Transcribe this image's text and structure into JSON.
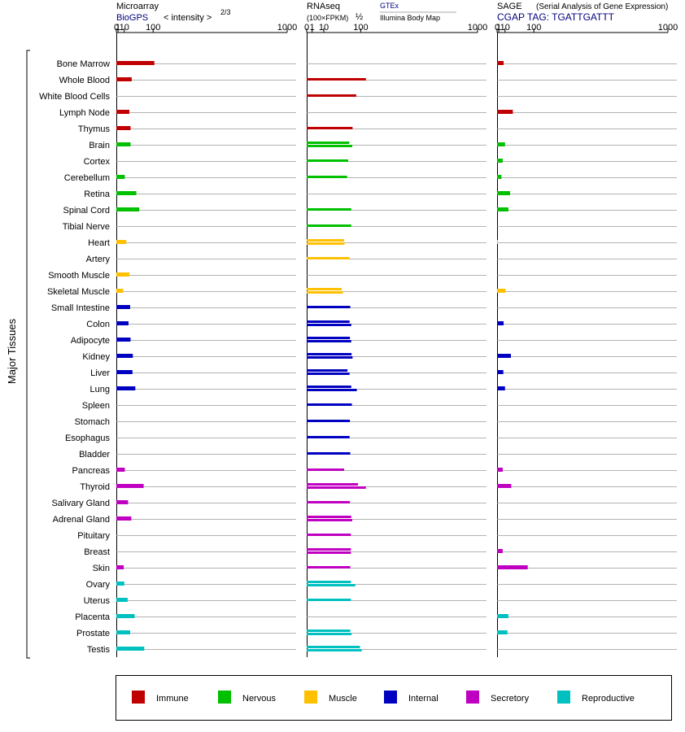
{
  "colors": {
    "Immune": "#c00000",
    "Nervous": "#00c000",
    "Muscle": "#ffc000",
    "Internal": "#0000c0",
    "Secretory": "#c000c0",
    "Reproductive": "#00c0c0"
  },
  "y_axis_label": "Major Tissues",
  "headers": {
    "microarray": {
      "title": "Microarray",
      "source": "BioGPS",
      "unit": "< intensity >",
      "exponent": "2/3"
    },
    "rnaseq": {
      "title": "RNAseq",
      "unit": "(100×FPKM)",
      "exponent": "½",
      "source": "GTEx",
      "subsource": "Illumina Body Map"
    },
    "sage": {
      "title": "SAGE",
      "subtitle": "(Serial Analysis of Gene Expression)",
      "tag": "CGAP TAG: TGATTGATTT"
    }
  },
  "chart_data": [
    {
      "type": "bar",
      "panel": "Microarray",
      "scale": "power 2/3",
      "xlim": [
        0,
        1000
      ],
      "ticks": [
        "0",
        "1",
        "10",
        "100",
        "1000"
      ],
      "tick_values": [
        0,
        1,
        10,
        100,
        1000
      ],
      "categories": [
        "Bone Marrow",
        "Whole Blood",
        "White Blood Cells",
        "Lymph Node",
        "Thymus",
        "Brain",
        "Cortex",
        "Cerebellum",
        "Retina",
        "Spinal Cord",
        "Tibial Nerve",
        "Heart",
        "Artery",
        "Smooth Muscle",
        "Skeletal Muscle",
        "Small Intestine",
        "Colon",
        "Adipocyte",
        "Kidney",
        "Liver",
        "Lung",
        "Spleen",
        "Stomach",
        "Esophagus",
        "Bladder",
        "Pancreas",
        "Thyroid",
        "Salivary Gland",
        "Adrenal Gland",
        "Pituitary",
        "Breast",
        "Skin",
        "Ovary",
        "Uterus",
        "Placenta",
        "Prostate",
        "Testis"
      ],
      "groups": [
        "Immune",
        "Immune",
        "Immune",
        "Immune",
        "Immune",
        "Nervous",
        "Nervous",
        "Nervous",
        "Nervous",
        "Nervous",
        "Nervous",
        "Muscle",
        "Muscle",
        "Muscle",
        "Muscle",
        "Internal",
        "Internal",
        "Internal",
        "Internal",
        "Internal",
        "Internal",
        "Internal",
        "Internal",
        "Internal",
        "Internal",
        "Secretory",
        "Secretory",
        "Secretory",
        "Secretory",
        "Secretory",
        "Secretory",
        "Secretory",
        "Reproductive",
        "Reproductive",
        "Reproductive",
        "Reproductive",
        "Reproductive"
      ],
      "values": [
        [
          105
        ],
        [
          27
        ],
        [],
        [
          21
        ],
        [
          24
        ],
        [
          24
        ],
        [],
        [
          11
        ],
        [
          40
        ],
        [
          49
        ],
        [],
        [
          14
        ],
        [],
        [
          21
        ],
        [
          8
        ],
        [
          23
        ],
        [
          19
        ],
        [
          24
        ],
        [
          30
        ],
        [
          29
        ],
        [
          37
        ],
        [],
        [],
        [],
        [],
        [
          11
        ],
        [
          64
        ],
        [
          18
        ],
        [
          26
        ],
        [],
        [],
        [
          9
        ],
        [
          10
        ],
        [
          17
        ],
        [
          35
        ],
        [
          23
        ],
        [
          66
        ]
      ]
    },
    {
      "type": "bar",
      "panel": "RNAseq",
      "scale": "power 1/2",
      "xlim": [
        0,
        1000
      ],
      "ticks": [
        "0",
        "1",
        "10",
        "100",
        "1000"
      ],
      "tick_values": [
        0,
        1,
        10,
        100,
        1000
      ],
      "categories": [
        "Bone Marrow",
        "Whole Blood",
        "White Blood Cells",
        "Lymph Node",
        "Thymus",
        "Brain",
        "Cortex",
        "Cerebellum",
        "Retina",
        "Spinal Cord",
        "Tibial Nerve",
        "Heart",
        "Artery",
        "Smooth Muscle",
        "Skeletal Muscle",
        "Small Intestine",
        "Colon",
        "Adipocyte",
        "Kidney",
        "Liver",
        "Lung",
        "Spleen",
        "Stomach",
        "Esophagus",
        "Bladder",
        "Pancreas",
        "Thyroid",
        "Salivary Gland",
        "Adrenal Gland",
        "Pituitary",
        "Breast",
        "Skin",
        "Ovary",
        "Uterus",
        "Placenta",
        "Prostate",
        "Testis"
      ],
      "groups": [
        "Immune",
        "Immune",
        "Immune",
        "Immune",
        "Immune",
        "Nervous",
        "Nervous",
        "Nervous",
        "Nervous",
        "Nervous",
        "Nervous",
        "Muscle",
        "Muscle",
        "Muscle",
        "Muscle",
        "Internal",
        "Internal",
        "Internal",
        "Internal",
        "Internal",
        "Internal",
        "Internal",
        "Internal",
        "Internal",
        "Internal",
        "Secretory",
        "Secretory",
        "Secretory",
        "Secretory",
        "Secretory",
        "Secretory",
        "Secretory",
        "Reproductive",
        "Reproductive",
        "Reproductive",
        "Reproductive",
        "Reproductive"
      ],
      "values": [
        [],
        [
          120
        ],
        [
          84
        ],
        [],
        [
          72
        ],
        [
          62,
          71
        ],
        [
          59
        ],
        [
          56
        ],
        [],
        [
          68
        ],
        [
          68
        ],
        [
          48,
          49
        ],
        [
          63
        ],
        [],
        [
          42,
          45
        ],
        [
          65
        ],
        [
          63,
          68
        ],
        [
          64,
          68
        ],
        [
          69,
          72
        ],
        [
          57,
          63
        ],
        [
          68,
          86
        ],
        [
          70
        ],
        [
          64
        ],
        [
          63
        ],
        [
          65
        ],
        [
          48
        ],
        [
          90,
          120
        ],
        [
          64
        ],
        [
          68,
          71
        ],
        [
          67
        ],
        [
          67,
          67
        ],
        [
          65
        ],
        [
          67,
          81
        ],
        [
          67
        ],
        [],
        [
          65,
          69
        ],
        [
          97,
          104
        ]
      ]
    },
    {
      "type": "bar",
      "panel": "SAGE",
      "scale": "power 2/3",
      "xlim": [
        0,
        1000
      ],
      "ticks": [
        "0",
        "1",
        "10",
        "100",
        "1000"
      ],
      "tick_values": [
        0,
        1,
        10,
        100,
        1000
      ],
      "categories": [
        "Bone Marrow",
        "Whole Blood",
        "White Blood Cells",
        "Lymph Node",
        "Thymus",
        "Brain",
        "Cortex",
        "Cerebellum",
        "Retina",
        "Spinal Cord",
        "Tibial Nerve",
        "Heart",
        "Artery",
        "Smooth Muscle",
        "Skeletal Muscle",
        "Small Intestine",
        "Colon",
        "Adipocyte",
        "Kidney",
        "Liver",
        "Lung",
        "Spleen",
        "Stomach",
        "Esophagus",
        "Bladder",
        "Pancreas",
        "Thyroid",
        "Salivary Gland",
        "Adrenal Gland",
        "Pituitary",
        "Breast",
        "Skin",
        "Ovary",
        "Uterus",
        "Placenta",
        "Prostate",
        "Testis"
      ],
      "groups": [
        "Immune",
        "Immune",
        "Immune",
        "Immune",
        "Immune",
        "Nervous",
        "Nervous",
        "Nervous",
        "Nervous",
        "Nervous",
        "Nervous",
        "Muscle",
        "Muscle",
        "Muscle",
        "Muscle",
        "Internal",
        "Internal",
        "Internal",
        "Internal",
        "Internal",
        "Internal",
        "Internal",
        "Internal",
        "Internal",
        "Internal",
        "Secretory",
        "Secretory",
        "Secretory",
        "Secretory",
        "Secretory",
        "Secretory",
        "Secretory",
        "Reproductive",
        "Reproductive",
        "Reproductive",
        "Reproductive",
        "Reproductive"
      ],
      "values": [
        [
          7.5
        ],
        [],
        [],
        [
          28
        ],
        [],
        [
          10
        ],
        [
          6
        ],
        [
          4
        ],
        [
          21
        ],
        [
          17
        ],
        [],
        [
          0.1
        ],
        [],
        [],
        [
          11
        ],
        [],
        [
          7.5
        ],
        [],
        [
          23
        ],
        [
          7
        ],
        [
          10
        ],
        [],
        [],
        [],
        [],
        [
          6
        ],
        [
          24
        ],
        [],
        [],
        [],
        [
          6
        ],
        [
          76
        ],
        [],
        [],
        [
          17
        ],
        [
          15
        ],
        []
      ]
    }
  ],
  "legend": [
    {
      "label": "Immune",
      "color": "#c00000"
    },
    {
      "label": "Nervous",
      "color": "#00c000"
    },
    {
      "label": "Muscle",
      "color": "#ffc000"
    },
    {
      "label": "Internal",
      "color": "#0000c0"
    },
    {
      "label": "Secretory",
      "color": "#c000c0"
    },
    {
      "label": "Reproductive",
      "color": "#00c0c0"
    }
  ]
}
